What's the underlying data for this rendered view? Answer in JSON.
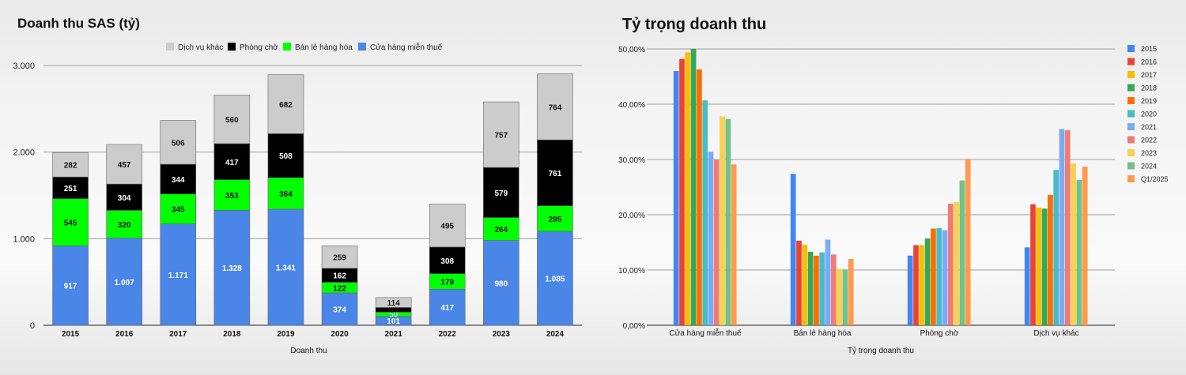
{
  "chart_data": [
    {
      "type": "bar",
      "stacked": true,
      "title": "Doanh thu SAS (tỷ)",
      "xlabel": "Doanh thu",
      "ylabel": "",
      "ylim": [
        0,
        3000
      ],
      "yticks": [
        "0",
        "1.000",
        "2.000",
        "3.000"
      ],
      "yticks_values": [
        0,
        1000,
        2000,
        3000
      ],
      "grid": true,
      "legend_position": "top",
      "categories": [
        "2015",
        "2016",
        "2017",
        "2018",
        "2019",
        "2020",
        "2021",
        "2022",
        "2023",
        "2024"
      ],
      "series": [
        {
          "name": "Cửa hàng miễn thuế",
          "color": "#4a86e8",
          "values": [
            917,
            1007,
            1171,
            1328,
            1341,
            374,
            101,
            417,
            980,
            1085
          ],
          "labels": [
            "917",
            "1.007",
            "1.171",
            "1.328",
            "1.341",
            "374",
            "101",
            "417",
            "980",
            "1.085"
          ]
        },
        {
          "name": "Bán lẻ hàng hóa",
          "color": "#00ff00",
          "values": [
            545,
            320,
            345,
            353,
            364,
            122,
            50,
            179,
            264,
            295
          ],
          "labels": [
            "545",
            "320",
            "345",
            "353",
            "364",
            "122",
            "50",
            "179",
            "264",
            "295"
          ]
        },
        {
          "name": "Phòng chờ",
          "color": "#000000",
          "values": [
            251,
            304,
            344,
            417,
            508,
            162,
            55,
            308,
            579,
            761
          ],
          "labels": [
            "251",
            "304",
            "344",
            "417",
            "508",
            "162",
            "55",
            "308",
            "579",
            "761"
          ]
        },
        {
          "name": "Dịch vụ khác",
          "color": "#cccccc",
          "values": [
            282,
            457,
            506,
            560,
            682,
            259,
            114,
            495,
            757,
            764
          ],
          "labels": [
            "282",
            "457",
            "506",
            "560",
            "682",
            "259",
            "114",
            "495",
            "757",
            "764"
          ]
        }
      ]
    },
    {
      "type": "bar",
      "title": "Tỷ trọng doanh thu",
      "xlabel": "Tỷ trọng doanh thu",
      "ylabel": "",
      "ylim": [
        0,
        50
      ],
      "yticks": [
        "0,00%",
        "10,00%",
        "20,00%",
        "30,00%",
        "40,00%",
        "50,00%"
      ],
      "yticks_values": [
        0,
        10,
        20,
        30,
        40,
        50
      ],
      "grid": true,
      "legend_position": "right",
      "categories": [
        "Cửa hàng miễn thuế",
        "Bán lẻ hàng hóa",
        "Phòng chờ",
        "Dịch vụ khác"
      ],
      "series": [
        {
          "name": "2015",
          "color": "#4285f4",
          "values": [
            46.0,
            27.4,
            12.6,
            14.1
          ]
        },
        {
          "name": "2016",
          "color": "#ea4335",
          "values": [
            48.2,
            15.3,
            14.5,
            21.9
          ]
        },
        {
          "name": "2017",
          "color": "#fbbc04",
          "values": [
            49.4,
            14.6,
            14.5,
            21.3
          ]
        },
        {
          "name": "2018",
          "color": "#34a853",
          "values": [
            50.0,
            13.3,
            15.7,
            21.1
          ]
        },
        {
          "name": "2019",
          "color": "#ff6d01",
          "values": [
            46.3,
            12.6,
            17.5,
            23.6
          ]
        },
        {
          "name": "2020",
          "color": "#46bdc6",
          "values": [
            40.7,
            13.2,
            17.6,
            28.1
          ]
        },
        {
          "name": "2021",
          "color": "#7baaf7",
          "values": [
            31.4,
            15.5,
            17.2,
            35.5
          ]
        },
        {
          "name": "2022",
          "color": "#f07b72",
          "values": [
            29.9,
            12.8,
            22.0,
            35.3
          ]
        },
        {
          "name": "2023",
          "color": "#fcd04f",
          "values": [
            37.8,
            10.2,
            22.3,
            29.3
          ]
        },
        {
          "name": "2024",
          "color": "#71c287",
          "values": [
            37.3,
            10.1,
            26.2,
            26.3
          ]
        },
        {
          "name": "Q1/2025",
          "color": "#ff994d",
          "values": [
            29.1,
            12.0,
            30.0,
            28.7
          ]
        }
      ]
    }
  ]
}
